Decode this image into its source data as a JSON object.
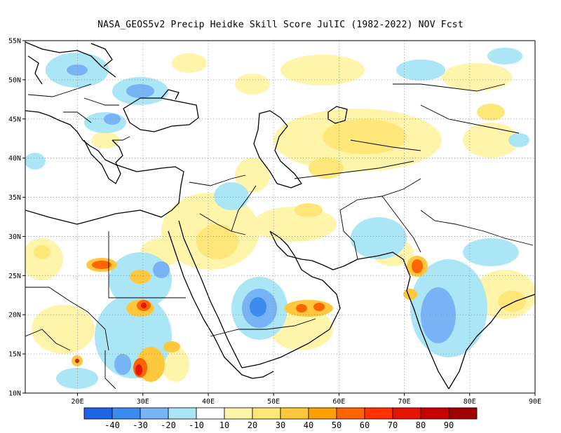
{
  "title": "NASA_GEOS5v2 Precip Heidke Skill Score JulIC (1982-2022) NOV Fcst",
  "map": {
    "lon_range": [
      12,
      90
    ],
    "lat_range": [
      10,
      55
    ],
    "lon_ticks": [
      "20E",
      "30E",
      "40E",
      "50E",
      "60E",
      "70E",
      "80E",
      "90E"
    ],
    "lat_ticks": [
      "55N",
      "50N",
      "45N",
      "40N",
      "35N",
      "30N",
      "25N",
      "20N",
      "15N",
      "10N"
    ],
    "gridlines": "dotted"
  },
  "colorbar": {
    "labels": [
      "-40",
      "-30",
      "-20",
      "-10",
      "10",
      "20",
      "30",
      "40",
      "50",
      "60",
      "70",
      "80",
      "90"
    ],
    "colors": [
      "#1e64e6",
      "#3c8cf0",
      "#78b4f5",
      "#aae6f5",
      "#ffffff",
      "#fff5aa",
      "#ffe678",
      "#ffc83c",
      "#ffa000",
      "#ff6400",
      "#ff3200",
      "#e61400",
      "#c80000",
      "#a00000"
    ]
  }
}
